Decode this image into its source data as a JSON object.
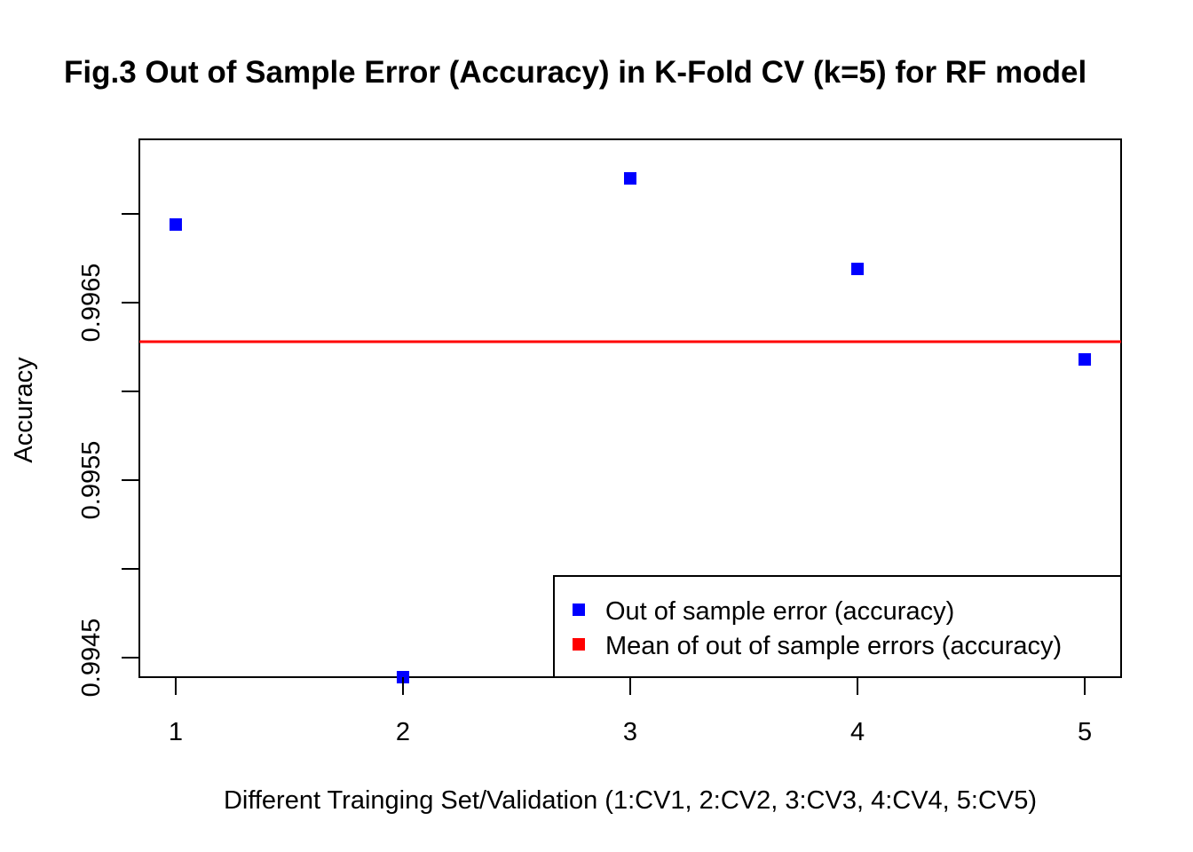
{
  "chart_data": {
    "type": "scatter",
    "title": "Fig.3 Out of Sample Error (Accuracy) in K-Fold CV (k=5) for RF model",
    "xlabel": "Different Trainging Set/Validation (1:CV1, 2:CV2, 3:CV3, 4:CV4, 5:CV5)",
    "ylabel": "Accuracy",
    "x_ticks": [
      1,
      2,
      3,
      4,
      5
    ],
    "x_tick_labels": [
      "1",
      "2",
      "3",
      "4",
      "5"
    ],
    "y_ticks": [
      0.9945,
      0.995,
      0.9955,
      0.996,
      0.9965,
      0.997
    ],
    "y_tick_labels": [
      "0.9945",
      "",
      "0.9955",
      "",
      "0.9965",
      ""
    ],
    "xlim": [
      0.84,
      5.16
    ],
    "ylim": [
      0.99439,
      0.99742
    ],
    "grid": false,
    "legend_position": "bottom-right",
    "series": [
      {
        "name": "Out of sample error (accuracy)",
        "marker": "square",
        "color": "#0000ff",
        "x": [
          1,
          2,
          3,
          4,
          5
        ],
        "y": [
          0.99694,
          0.99439,
          0.9972,
          0.99669,
          0.99618
        ]
      }
    ],
    "reference_lines": [
      {
        "name": "Mean of out of sample errors (accuracy)",
        "orientation": "horizontal",
        "y": 0.99628,
        "color": "#ff0000"
      }
    ]
  }
}
